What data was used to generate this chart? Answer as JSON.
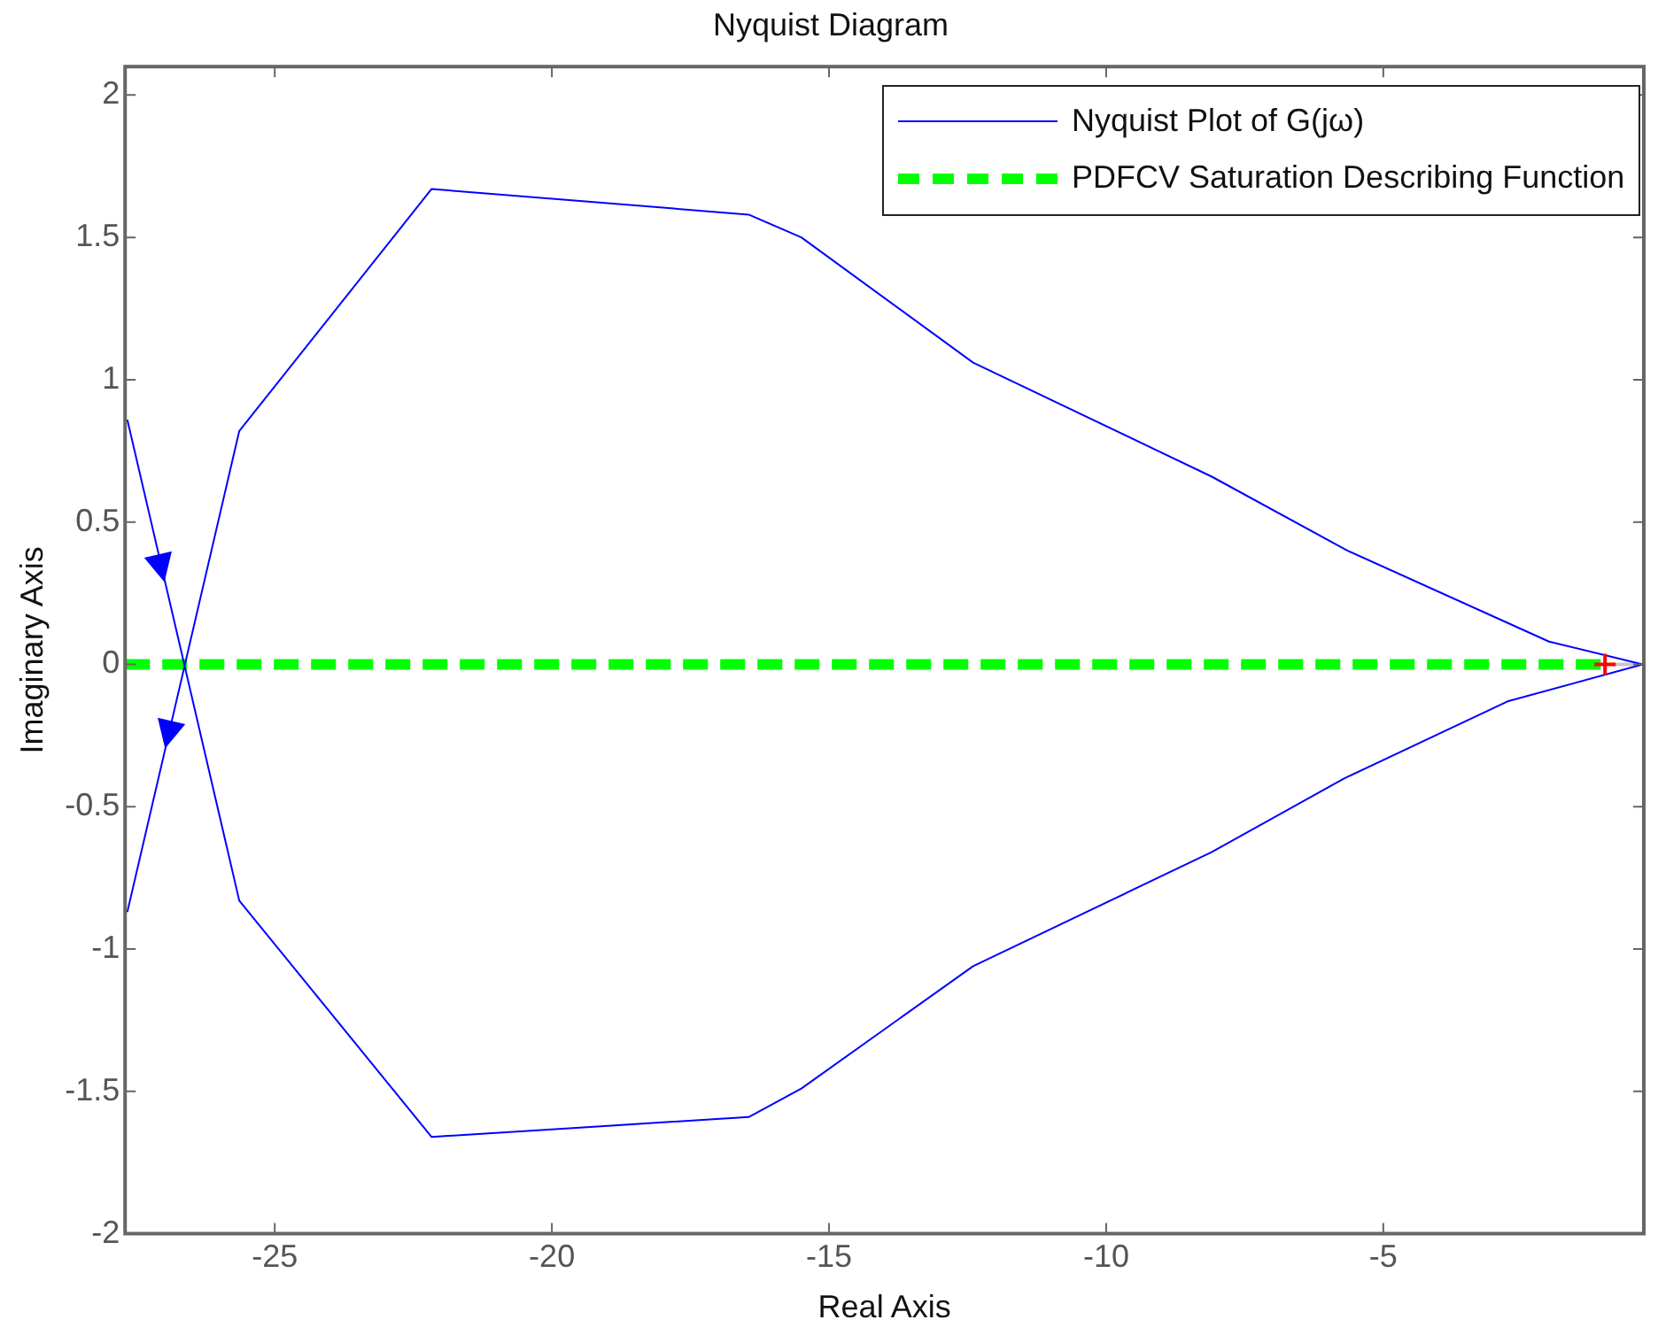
{
  "chart_data": {
    "type": "line",
    "title": "Nyquist Diagram",
    "xlabel": "Real Axis",
    "ylabel": "Imaginary Axis",
    "xlim": [
      -27.7,
      -0.3
    ],
    "xticks": [
      -25,
      -20,
      -15,
      -10,
      -5
    ],
    "ylim": [
      -2,
      2.1
    ],
    "yticks": [
      -2,
      -1.5,
      -1,
      -0.5,
      0,
      0.5,
      1,
      1.5,
      2
    ],
    "grid": false,
    "legend": "top right",
    "marker": "none",
    "ref_lines": [
      {
        "axis": "y",
        "value": 0,
        "color": "#c8c8c8",
        "line_style": "dashed"
      }
    ],
    "series": [
      {
        "name": "Nyquist Plot of G(jω)",
        "color": "#0000ff",
        "line_style": "solid",
        "x": [
          -27.66,
          -25.64,
          -22.17,
          -16.45,
          -15.5,
          -12.4,
          -8.1,
          -5.7,
          -2.76,
          -0.32,
          -2.01,
          -5.65,
          -8.1,
          -12.4,
          -15.5,
          -16.45,
          -22.17,
          -25.64,
          -27.66
        ],
        "values": [
          0.86,
          -0.83,
          -1.66,
          -1.59,
          -1.49,
          -1.06,
          -0.66,
          -0.4,
          -0.13,
          0,
          0.08,
          0.4,
          0.66,
          1.06,
          1.5,
          1.58,
          1.67,
          0.82,
          -0.87
        ]
      },
      {
        "name": "PDFCV Saturation Describing Function",
        "color": "#00ff00",
        "line_style": "dashed",
        "x": [
          -27.7,
          -1
        ],
        "values": [
          0,
          0
        ]
      },
      {
        "type": "scatter",
        "color": "#ff0000",
        "marker": "cross",
        "x": [
          -1
        ],
        "values": [
          0
        ]
      }
    ]
  }
}
